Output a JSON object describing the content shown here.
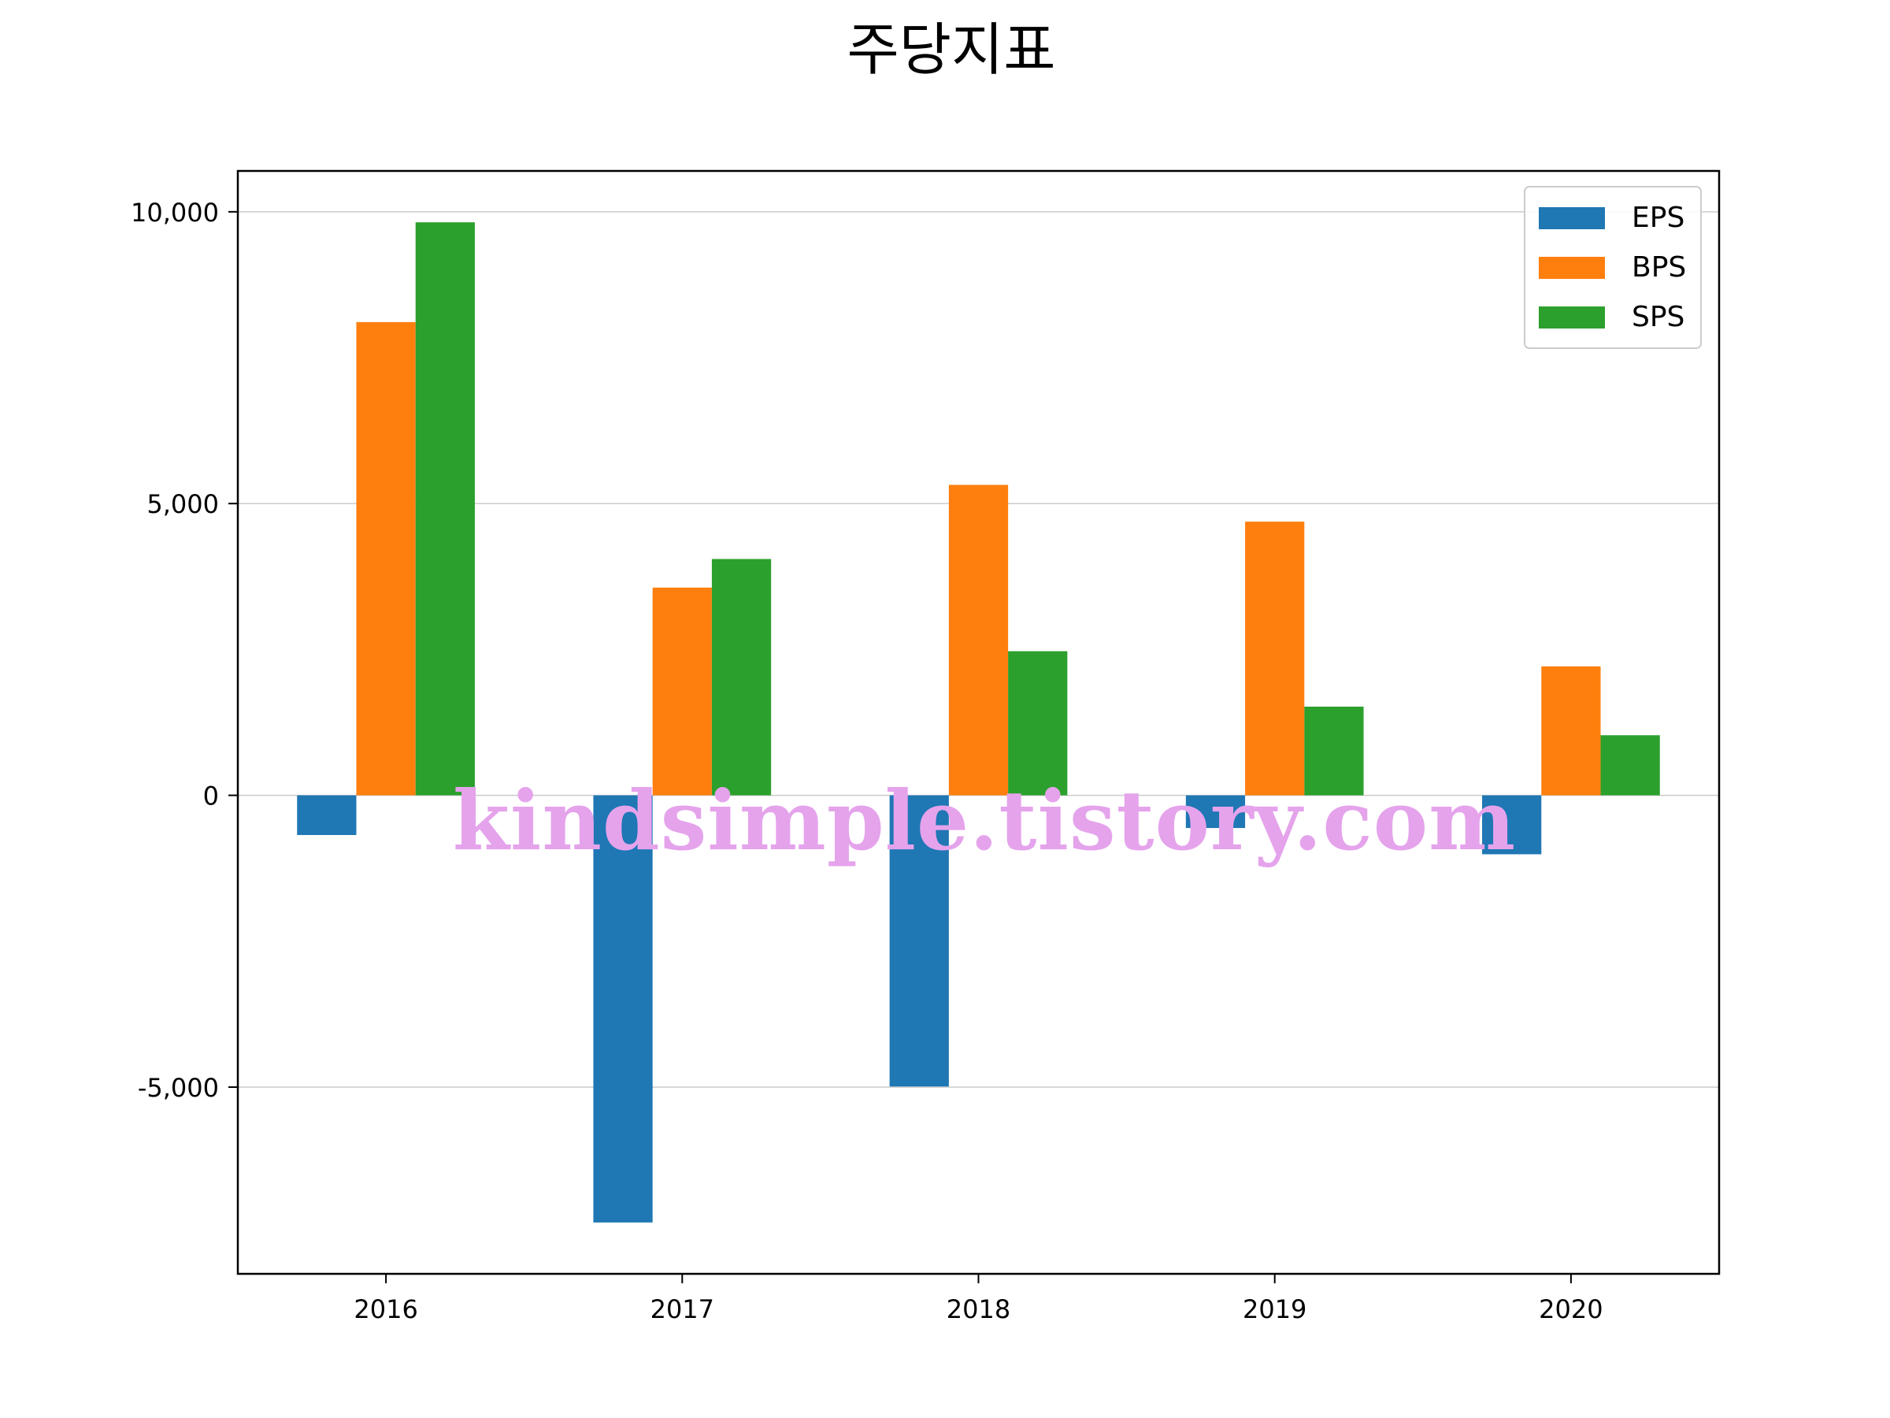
{
  "chart_data": {
    "type": "bar",
    "title": "주당지표",
    "xlabel": "",
    "ylabel": "",
    "categories": [
      "2016",
      "2017",
      "2018",
      "2019",
      "2020"
    ],
    "series": [
      {
        "name": "EPS",
        "color": "#1f77b4",
        "values": [
          -680,
          -7320,
          -4990,
          -560,
          -1010
        ]
      },
      {
        "name": "BPS",
        "color": "#ff7f0e",
        "values": [
          8110,
          3560,
          5320,
          4690,
          2210
        ]
      },
      {
        "name": "SPS",
        "color": "#2ca02c",
        "values": [
          9820,
          4050,
          2470,
          1520,
          1030
        ]
      }
    ],
    "ylim": [
      -8200,
      10700
    ],
    "yticks": [
      -5000,
      0,
      5000,
      10000
    ],
    "ytick_labels": [
      "-5,000",
      "0",
      "5,000",
      "10,000"
    ],
    "grid": "horizontal",
    "legend_position": "top-right"
  },
  "watermark": "kindsimple.tistory.com"
}
